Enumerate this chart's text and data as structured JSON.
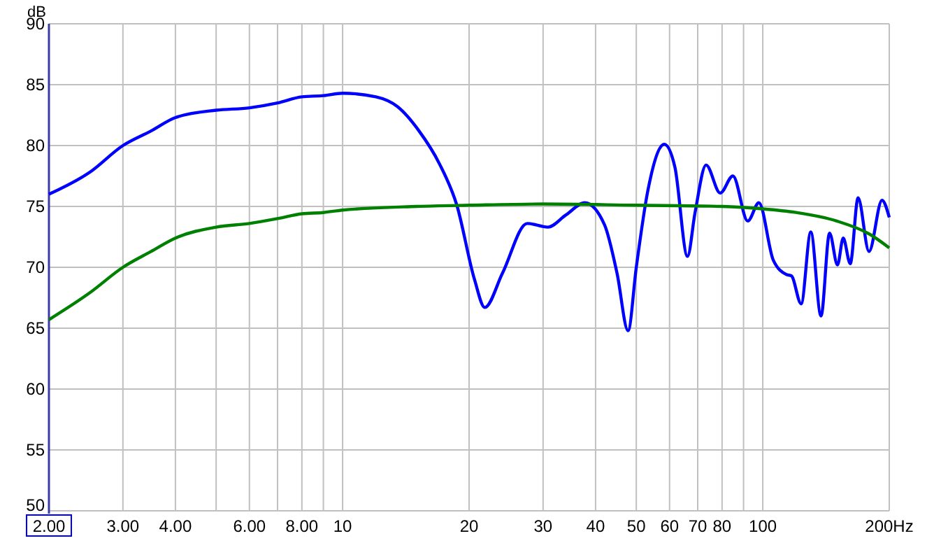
{
  "chart_data": {
    "type": "line",
    "ylabel": "dB",
    "log": "x",
    "grid": true,
    "marker": "none",
    "line_style": "solid",
    "xlim": [
      2,
      200
    ],
    "ylim": [
      50,
      90
    ],
    "xticks": [
      {
        "value": 2,
        "label": "2.00"
      },
      {
        "value": 3,
        "label": "3.00"
      },
      {
        "value": 4,
        "label": "4.00"
      },
      {
        "value": 5,
        "label": null
      },
      {
        "value": 6,
        "label": "6.00"
      },
      {
        "value": 7,
        "label": null
      },
      {
        "value": 8,
        "label": "8.00"
      },
      {
        "value": 9,
        "label": null
      },
      10,
      20,
      30,
      40,
      50,
      60,
      70,
      80,
      {
        "value": 90,
        "label": null
      },
      100,
      {
        "value": 200,
        "label": "200Hz"
      }
    ],
    "yticks": [
      50,
      55,
      60,
      65,
      70,
      75,
      80,
      85,
      90
    ],
    "series": [
      {
        "color": "#0000ff",
        "x": [
          2,
          2.5,
          3,
          3.5,
          4,
          5,
          6,
          7,
          8,
          9,
          10,
          12,
          13.5,
          15.2,
          17,
          18.7,
          20.6,
          21.8,
          24,
          27.5,
          30.8,
          34,
          37.7,
          42,
          45,
          47.8,
          50,
          53.2,
          58.3,
          61.8,
          66.2,
          69,
          73.3,
          79.2,
          84.9,
          92.1,
          97.9,
          105.9,
          114,
          117,
          123.4,
          130.1,
          137.6,
          144.2,
          150.6,
          155.4,
          161.5,
          168.6,
          179,
          192.2,
          200
        ],
        "values": [
          76,
          77.8,
          80,
          81.2,
          82.3,
          82.9,
          83.1,
          83.5,
          84,
          84.1,
          84.3,
          84,
          83.2,
          81.2,
          78.5,
          75.1,
          69,
          66.7,
          69.5,
          73.6,
          73.3,
          74.3,
          75.3,
          73.5,
          69.5,
          64.8,
          70,
          76.2,
          80.1,
          78.2,
          70.9,
          74.5,
          78.4,
          76.1,
          77.5,
          73.8,
          75.3,
          70.6,
          69.4,
          69.3,
          67,
          72.9,
          66,
          72.8,
          70.2,
          72.4,
          70.3,
          75.7,
          71.3,
          75.5,
          74.1
        ]
      },
      {
        "color": "#008000",
        "x": [
          2,
          2.5,
          3,
          3.5,
          4,
          5,
          6,
          7,
          8,
          9,
          10,
          15,
          20,
          30,
          50,
          80,
          100,
          120,
          150,
          180,
          200
        ],
        "values": [
          65.7,
          67.9,
          70,
          71.3,
          72.4,
          73.3,
          73.6,
          74,
          74.4,
          74.5,
          74.7,
          75,
          75.1,
          75.2,
          75.1,
          75,
          74.8,
          74.5,
          73.8,
          72.7,
          71.6
        ]
      }
    ]
  }
}
